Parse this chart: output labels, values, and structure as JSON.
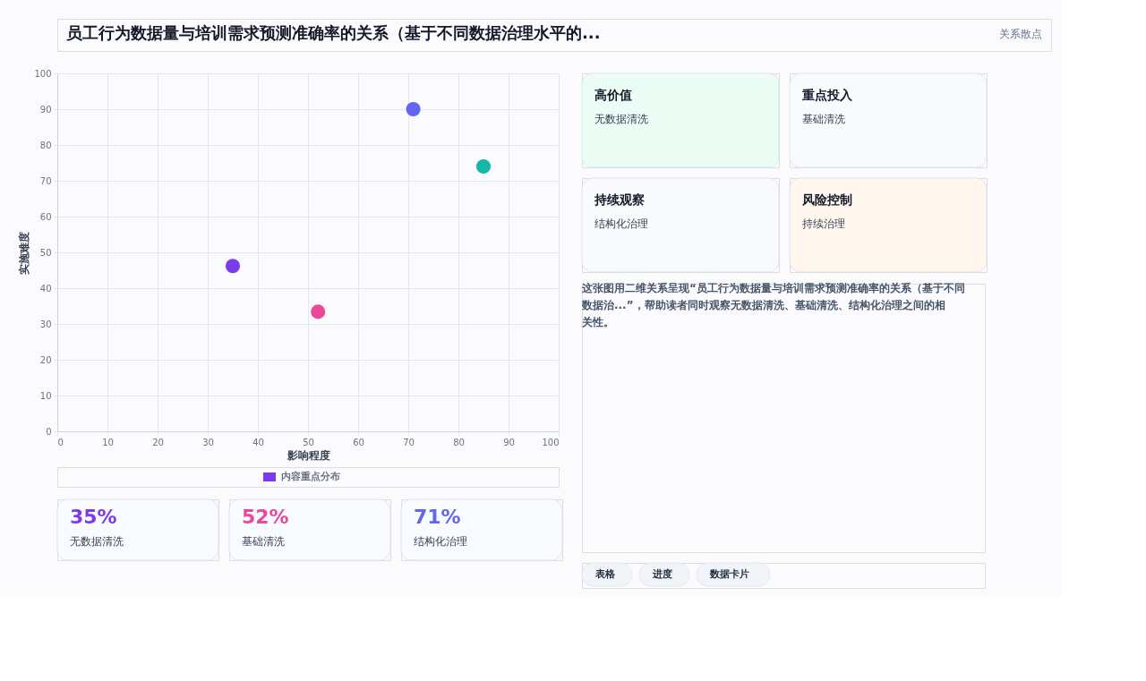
{
  "chart_data": [
    {
      "type": "scatter",
      "title": "员工行为数据量与培训需求预测准确率的关系（基于不同数据治理水平的...",
      "annotations": [
        "关系散点"
      ],
      "xlabel": "影响程度",
      "ylabel": "实施难度",
      "series": [
        {
          "name": "内容重点分布",
          "color": "#7c3aed",
          "x": [
            35,
            52,
            71,
            85
          ],
          "values": [
            46.2,
            33.4,
            90,
            74
          ],
          "colors": [
            "#7c3aed",
            "#ec4899",
            "#6366f1",
            "#14b8a6"
          ]
        }
      ],
      "xlim": [
        0,
        100
      ],
      "ylim": [
        0,
        100
      ],
      "xticks": [
        0,
        10,
        20,
        30,
        40,
        50,
        60,
        70,
        80,
        90,
        100
      ],
      "yticks": [
        0,
        10,
        20,
        30,
        40,
        50,
        60,
        70,
        80,
        90,
        100
      ],
      "grid": true,
      "legend": "bottom",
      "marker": "circle"
    },
    {
      "type": "other",
      "categories": [
        "高价值",
        "重点投入",
        "持续观察",
        "风险控制"
      ],
      "colors": [
        "#ecfdf5",
        "#f8fafc",
        "#f8fafc",
        "#fff7ed"
      ],
      "annotations": [
        "无数据清洗",
        "基础清洗",
        "结构化治理",
        "持续治理",
        "这张图用二维关系呈现“员工行为数据量与培训需求预测准确率的关系（基于不同数据治...”，帮助读者同时观察无数据清洗、基础清洗、结构化治理之间的相关性。",
        "表格",
        "进度",
        "数据卡片"
      ]
    },
    {
      "type": "other",
      "categories": [
        "无数据清洗",
        "基础清洗",
        "结构化治理"
      ],
      "value_labels": [
        "35%",
        "52%",
        "71%"
      ]
    }
  ]
}
